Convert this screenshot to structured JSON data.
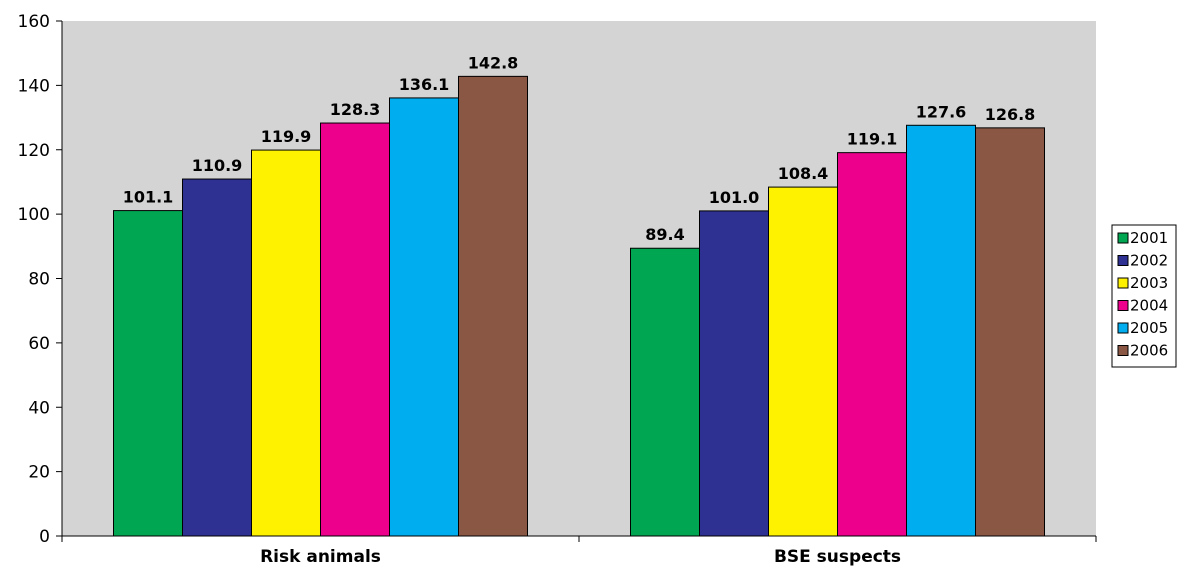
{
  "chart_data": {
    "type": "bar",
    "categories": [
      "Risk animals",
      "BSE suspects"
    ],
    "series": [
      {
        "name": "2001",
        "color": "#00a651",
        "values": [
          101.1,
          89.4
        ]
      },
      {
        "name": "2002",
        "color": "#2e3192",
        "values": [
          110.9,
          101.0
        ]
      },
      {
        "name": "2003",
        "color": "#fff200",
        "values": [
          119.9,
          108.4
        ]
      },
      {
        "name": "2004",
        "color": "#ec008c",
        "values": [
          128.3,
          119.1
        ]
      },
      {
        "name": "2005",
        "color": "#00aeef",
        "values": [
          136.1,
          127.6
        ]
      },
      {
        "name": "2006",
        "color": "#8b5745",
        "values": [
          142.8,
          126.8
        ]
      }
    ],
    "value_labels": [
      [
        "101.1",
        "89.4"
      ],
      [
        "110.9",
        "101.0"
      ],
      [
        "119.9",
        "108.4"
      ],
      [
        "128.3",
        "119.1"
      ],
      [
        "136.1",
        "127.6"
      ],
      [
        "142.8",
        "126.8"
      ]
    ],
    "yticks": [
      "0",
      "20",
      "40",
      "60",
      "80",
      "100",
      "120",
      "140",
      "160"
    ],
    "ylim": [
      0,
      160
    ],
    "title": "",
    "xlabel": "",
    "ylabel": "",
    "plot_background": "#d4d4d4",
    "grid": false,
    "legend_position": "right"
  }
}
